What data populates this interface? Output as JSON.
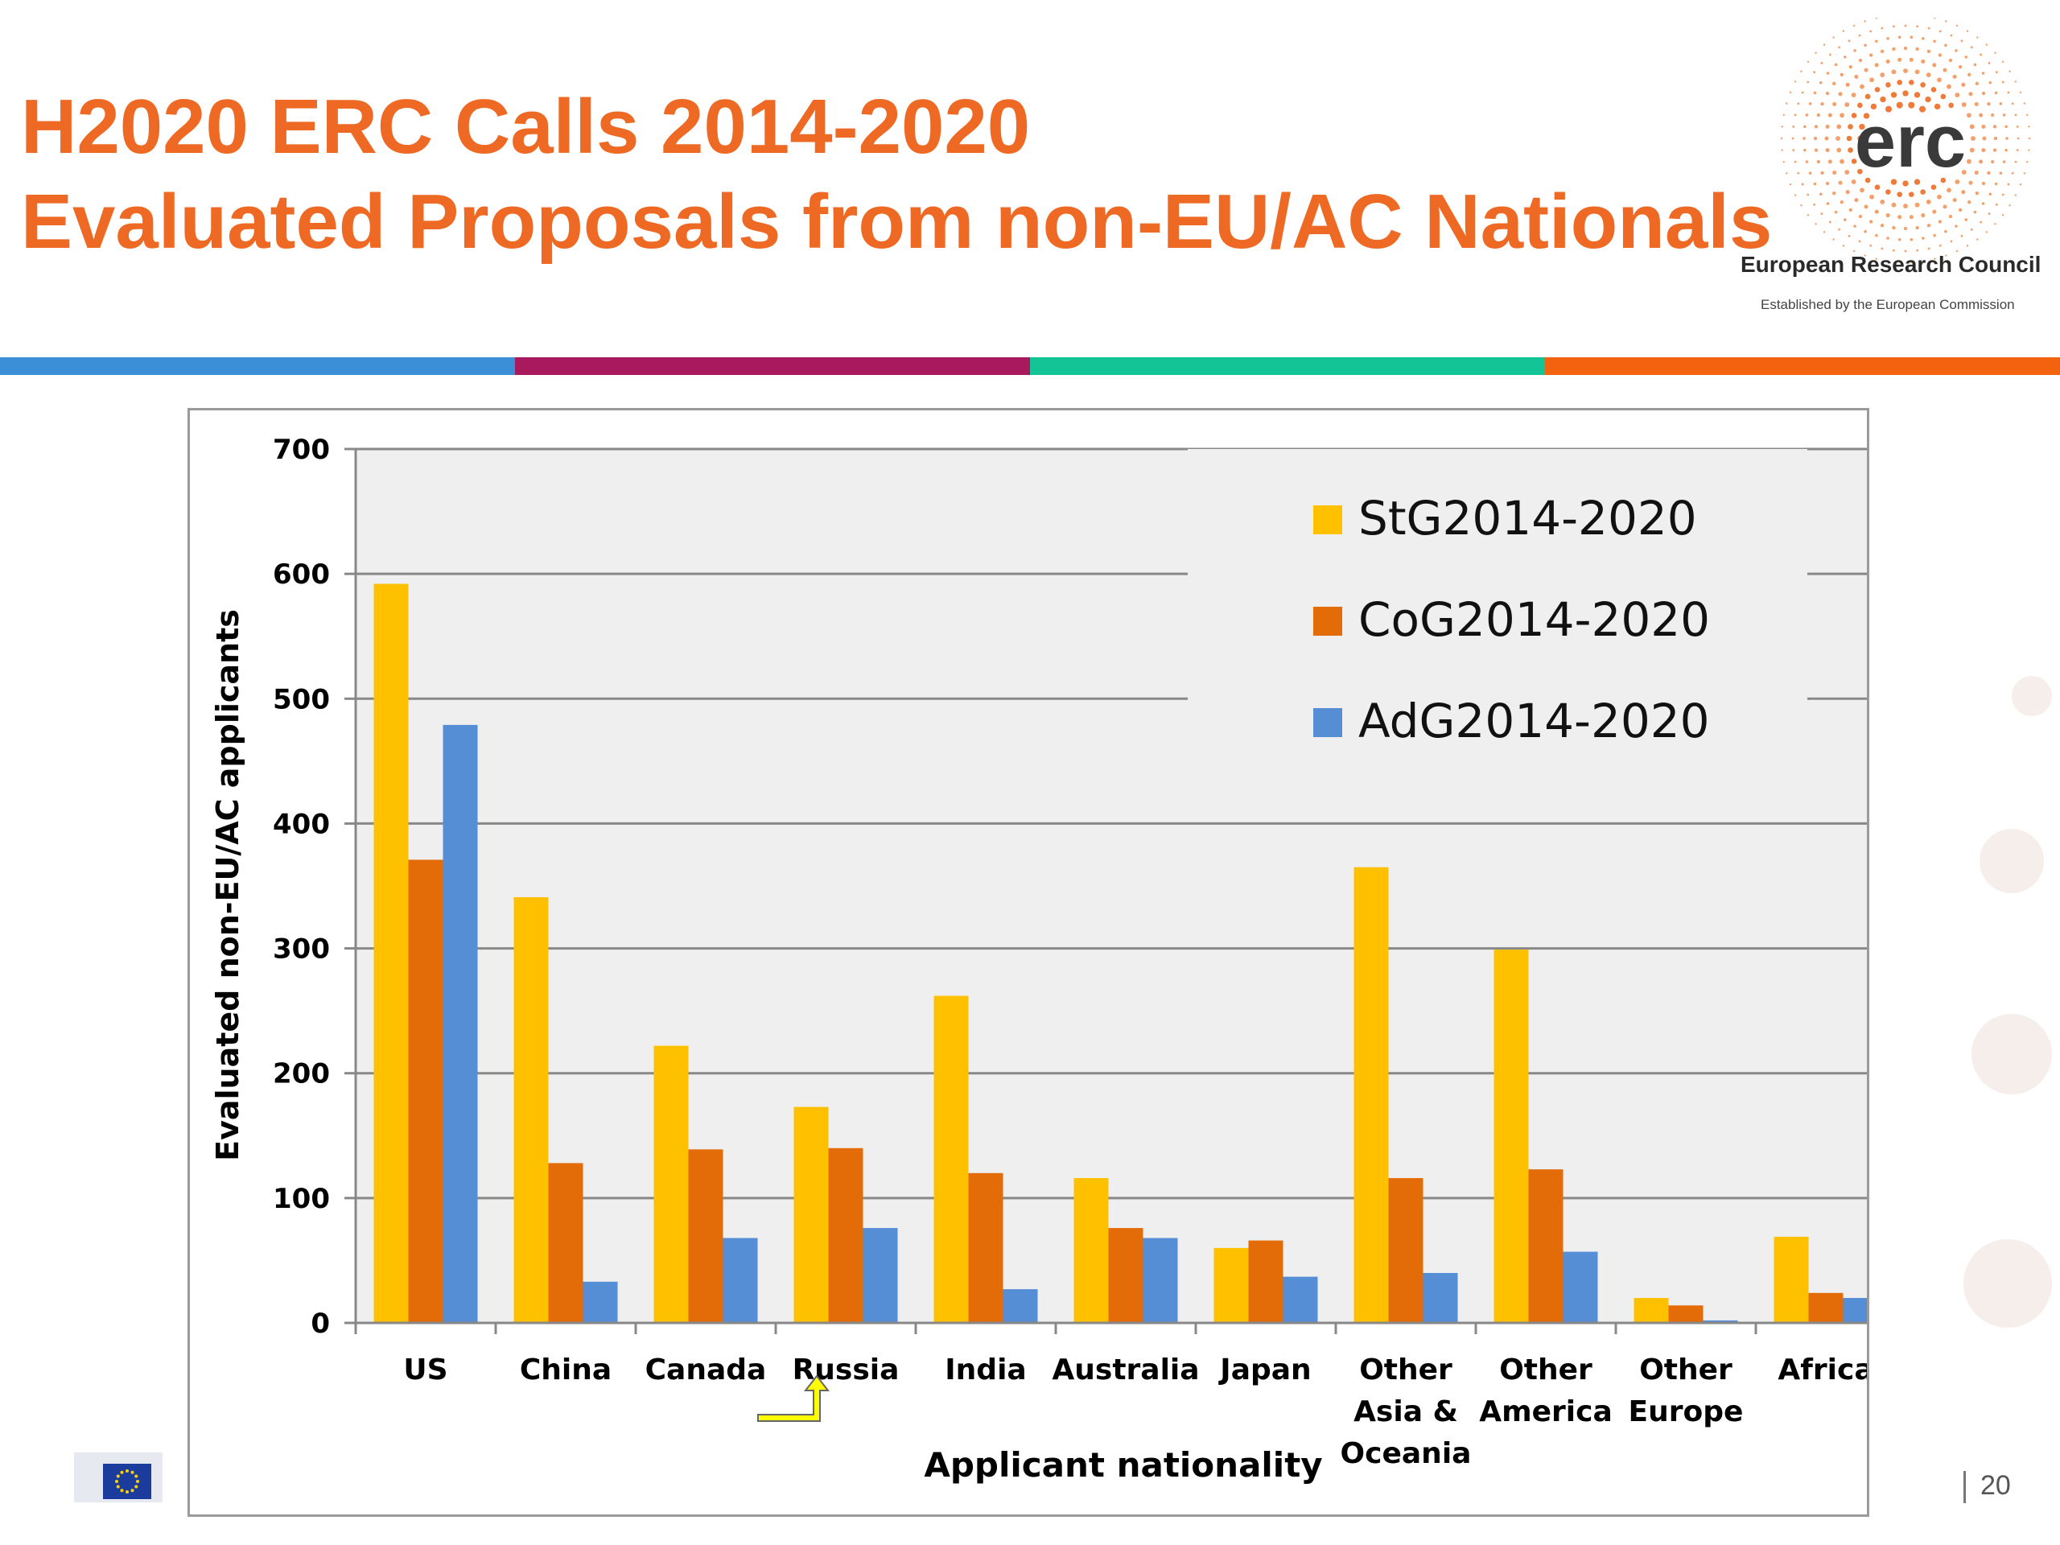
{
  "slide": {
    "title_line1": "H2020 ERC Calls 2014-2020",
    "title_line2": "Evaluated Proposals from non-EU/AC Nationals",
    "org_name": "European Research Council",
    "org_tagline": "Established by the European Commission",
    "logo_text": "erc",
    "page_number": "20",
    "title_color": "#ee6a24",
    "stripe_colors": [
      "#3a8fd6",
      "#a8195e",
      "#13c496",
      "#f2620f"
    ]
  },
  "chart_data": {
    "type": "bar",
    "xlabel": "Applicant nationality",
    "ylabel": "Evaluated non-EU/AC applicants",
    "ylim": [
      0,
      700
    ],
    "yticks": [
      0,
      100,
      200,
      300,
      400,
      500,
      600,
      700
    ],
    "grid": true,
    "legend_position": "top-right",
    "categories": [
      [
        "US"
      ],
      [
        "China"
      ],
      [
        "Canada"
      ],
      [
        "Russia"
      ],
      [
        "India"
      ],
      [
        "Australia"
      ],
      [
        "Japan"
      ],
      [
        "Other",
        "Asia &",
        "Oceania"
      ],
      [
        "Other",
        "America"
      ],
      [
        "Other",
        "Europe"
      ],
      [
        "Africa"
      ]
    ],
    "series": [
      {
        "name": "StG2014-2020",
        "color": "#ffc000",
        "values": [
          592,
          341,
          222,
          173,
          262,
          116,
          60,
          365,
          299,
          20,
          69
        ]
      },
      {
        "name": "CoG2014-2020",
        "color": "#e36c09",
        "values": [
          371,
          128,
          139,
          140,
          120,
          76,
          66,
          116,
          123,
          14,
          24
        ]
      },
      {
        "name": "AdG2014-2020",
        "color": "#558ed5",
        "values": [
          479,
          33,
          68,
          76,
          27,
          68,
          37,
          40,
          57,
          2,
          20
        ]
      }
    ],
    "annotation": {
      "type": "arrow",
      "target": "Russia",
      "color": "#ffff00"
    }
  }
}
